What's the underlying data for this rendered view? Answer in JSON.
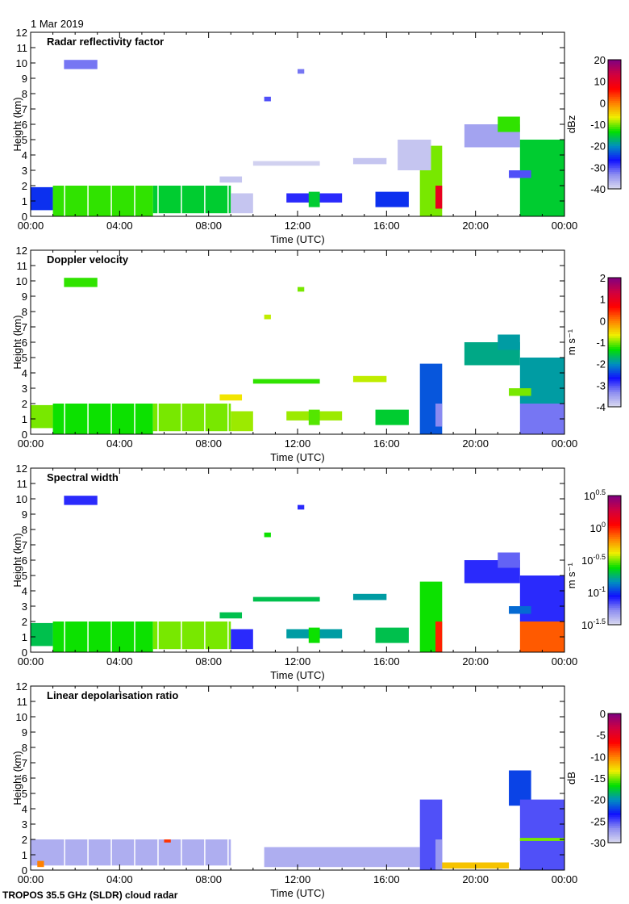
{
  "header": {
    "date": "1 Mar 2019"
  },
  "footer": {
    "instrument": "TROPOS 35.5 GHz (SLDR) cloud radar"
  },
  "colormap": [
    "#dcdcf0",
    "#9090f0",
    "#1010ff",
    "#0090c0",
    "#00e000",
    "#f0f000",
    "#ff8000",
    "#ff0000",
    "#d00040",
    "#800080"
  ],
  "chart_data": [
    {
      "type": "heatmap",
      "title": "Radar reflectivity factor",
      "xlabel": "Time (UTC)",
      "ylabel": "Height (km)",
      "xlim_hours": [
        0,
        24
      ],
      "ylim": [
        0,
        12
      ],
      "x_ticks": [
        "00:00",
        "04:00",
        "08:00",
        "12:00",
        "16:00",
        "20:00",
        "00:00"
      ],
      "y_ticks": [
        0,
        1,
        2,
        3,
        4,
        5,
        6,
        7,
        8,
        9,
        10,
        11,
        12
      ],
      "colorbar": {
        "label": "dBz",
        "range": [
          -40,
          20
        ],
        "ticks": [
          "20",
          "10",
          "0",
          "-10",
          "-20",
          "-30",
          "-40"
        ]
      },
      "echoes": [
        [
          1.5,
          3.0,
          9.6,
          10.2,
          -32
        ],
        [
          0,
          1,
          0.4,
          1.9,
          -25
        ],
        [
          1,
          5.5,
          0,
          2,
          -12
        ],
        [
          5.5,
          9,
          0.2,
          2,
          -15
        ],
        [
          9,
          10,
          0.2,
          1.5,
          -38
        ],
        [
          8.5,
          9.5,
          2.2,
          2.6,
          -38
        ],
        [
          10,
          13,
          3.3,
          3.6,
          -39
        ],
        [
          11.5,
          14,
          0.9,
          1.5,
          -28
        ],
        [
          12.5,
          13,
          0.6,
          1.6,
          -15
        ],
        [
          14.5,
          16,
          3.4,
          3.8,
          -38
        ],
        [
          15.5,
          17,
          0.6,
          1.6,
          -25
        ],
        [
          17.5,
          18.5,
          0,
          4.6,
          -10
        ],
        [
          18.2,
          18.5,
          0.5,
          2,
          10
        ],
        [
          19.5,
          22,
          4.5,
          6,
          -35
        ],
        [
          21,
          22,
          5.5,
          6.5,
          -12
        ],
        [
          22,
          24,
          0,
          5,
          -15
        ],
        [
          21.5,
          22.5,
          2.5,
          3,
          -30
        ],
        [
          10.5,
          10.8,
          7.5,
          7.8,
          -30
        ],
        [
          12,
          12.3,
          9.3,
          9.6,
          -32
        ],
        [
          16.5,
          18,
          3,
          5,
          -38
        ]
      ]
    },
    {
      "type": "heatmap",
      "title": "Doppler velocity",
      "xlabel": "Time (UTC)",
      "ylabel": "Height (km)",
      "xlim_hours": [
        0,
        24
      ],
      "ylim": [
        0,
        12
      ],
      "x_ticks": [
        "00:00",
        "04:00",
        "08:00",
        "12:00",
        "16:00",
        "20:00",
        "00:00"
      ],
      "y_ticks": [
        0,
        1,
        2,
        3,
        4,
        5,
        6,
        7,
        8,
        9,
        10,
        11,
        12
      ],
      "colorbar": {
        "label": "m s⁻¹",
        "range": [
          -4,
          2
        ],
        "ticks": [
          "2",
          "1",
          "0",
          "-1",
          "-2",
          "-3",
          "-4"
        ]
      },
      "echoes": [
        [
          1.5,
          3.0,
          9.6,
          10.2,
          -1.2
        ],
        [
          0,
          1,
          0.4,
          1.9,
          -1.0
        ],
        [
          1,
          5.5,
          0,
          2,
          -1.3
        ],
        [
          5.5,
          9,
          0.2,
          2,
          -1.0
        ],
        [
          9,
          10,
          0.2,
          1.5,
          -0.9
        ],
        [
          8.5,
          9.5,
          2.2,
          2.6,
          -0.6
        ],
        [
          10,
          13,
          3.3,
          3.6,
          -1.2
        ],
        [
          11.5,
          14,
          0.9,
          1.5,
          -0.9
        ],
        [
          12.5,
          13,
          0.6,
          1.6,
          -1.1
        ],
        [
          14.5,
          16,
          3.4,
          3.8,
          -0.8
        ],
        [
          15.5,
          17,
          0.6,
          1.6,
          -1.5
        ],
        [
          17.5,
          18.5,
          0,
          4.6,
          -2.3
        ],
        [
          18.2,
          18.5,
          0.5,
          2,
          -3.3
        ],
        [
          19.5,
          22,
          4.5,
          6,
          -1.8
        ],
        [
          21,
          22,
          5.5,
          6.5,
          -1.9
        ],
        [
          22,
          24,
          2,
          5,
          -1.9
        ],
        [
          22,
          24,
          0,
          2,
          -3.2
        ],
        [
          21.5,
          22.5,
          2.5,
          3,
          -1.0
        ],
        [
          10.5,
          10.8,
          7.5,
          7.8,
          -0.8
        ],
        [
          12,
          12.3,
          9.3,
          9.6,
          -1.0
        ]
      ]
    },
    {
      "type": "heatmap",
      "title": "Spectral width",
      "xlabel": "Time (UTC)",
      "ylabel": "Height (km)",
      "xlim_hours": [
        0,
        24
      ],
      "ylim": [
        0,
        12
      ],
      "x_ticks": [
        "00:00",
        "04:00",
        "08:00",
        "12:00",
        "16:00",
        "20:00",
        "00:00"
      ],
      "y_ticks": [
        0,
        1,
        2,
        3,
        4,
        5,
        6,
        7,
        8,
        9,
        10,
        11,
        12
      ],
      "colorbar": {
        "label": "m s⁻¹",
        "scale": "log10",
        "range": [
          -1.5,
          0.5
        ],
        "ticks": [
          "0.5",
          "0",
          "-0.5",
          "-1",
          "-1.5"
        ],
        "tick_base": "10"
      },
      "echoes": [
        [
          1.5,
          3.0,
          9.6,
          10.2,
          -1.1
        ],
        [
          0,
          1,
          0.4,
          1.9,
          -0.7
        ],
        [
          1,
          5.5,
          0,
          2,
          -0.6
        ],
        [
          5.5,
          9,
          0.2,
          2,
          -0.5
        ],
        [
          9,
          10,
          0.2,
          1.5,
          -1.1
        ],
        [
          8.5,
          9.5,
          2.2,
          2.6,
          -0.7
        ],
        [
          10,
          13,
          3.3,
          3.6,
          -0.7
        ],
        [
          11.5,
          14,
          0.9,
          1.5,
          -0.8
        ],
        [
          12.5,
          13,
          0.6,
          1.6,
          -0.6
        ],
        [
          14.5,
          16,
          3.4,
          3.8,
          -0.8
        ],
        [
          15.5,
          17,
          0.6,
          1.6,
          -0.7
        ],
        [
          17.5,
          18.5,
          0,
          4.6,
          -0.6
        ],
        [
          18.2,
          18.5,
          0,
          2,
          0.0
        ],
        [
          19.5,
          22,
          4.5,
          6,
          -1.1
        ],
        [
          21,
          22,
          5.5,
          6.5,
          -1.2
        ],
        [
          22,
          24,
          2,
          5,
          -1.1
        ],
        [
          22,
          24,
          0,
          2,
          -0.1
        ],
        [
          21.5,
          22.5,
          2.5,
          3,
          -0.9
        ],
        [
          10.5,
          10.8,
          7.5,
          7.8,
          -0.6
        ],
        [
          12,
          12.3,
          9.3,
          9.6,
          -1.1
        ]
      ]
    },
    {
      "type": "heatmap",
      "title": "Linear depolarisation ratio",
      "xlabel": "Time (UTC)",
      "ylabel": "Height (km)",
      "xlim_hours": [
        0,
        24
      ],
      "ylim": [
        0,
        12
      ],
      "x_ticks": [
        "00:00",
        "04:00",
        "08:00",
        "12:00",
        "16:00",
        "20:00",
        "00:00"
      ],
      "y_ticks": [
        0,
        1,
        2,
        3,
        4,
        5,
        6,
        7,
        8,
        9,
        10,
        11,
        12
      ],
      "colorbar": {
        "label": "dB",
        "range": [
          -30,
          0
        ],
        "ticks": [
          "0",
          "-5",
          "-10",
          "-15",
          "-20",
          "-25",
          "-30"
        ]
      },
      "echoes": [
        [
          0,
          9,
          0.3,
          2,
          -28
        ],
        [
          10.5,
          17.5,
          0.2,
          1.5,
          -28
        ],
        [
          17.5,
          18.5,
          0,
          4.6,
          -25
        ],
        [
          18.2,
          18.5,
          0,
          2,
          -27
        ],
        [
          18.5,
          21.5,
          0.1,
          0.5,
          -12
        ],
        [
          21.5,
          22.5,
          4.2,
          6.5,
          -22
        ],
        [
          22,
          24,
          0,
          4.6,
          -25
        ],
        [
          22,
          24,
          1.9,
          2.1,
          -15
        ],
        [
          0.3,
          0.6,
          0.2,
          0.6,
          -10
        ],
        [
          6,
          6.3,
          1.8,
          2.0,
          -8
        ]
      ]
    }
  ]
}
